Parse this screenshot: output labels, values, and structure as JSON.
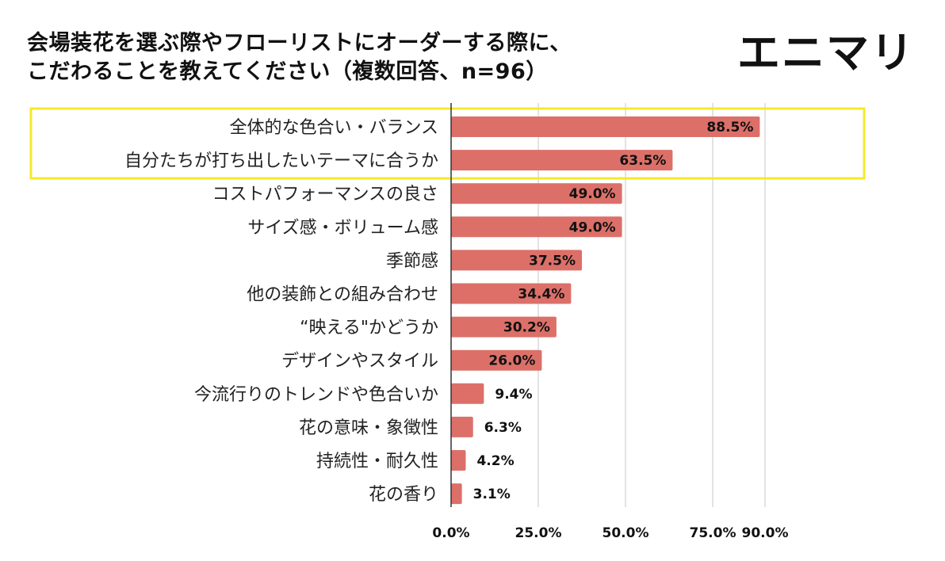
{
  "title": {
    "line1": "会場装花を選ぶ際やフローリストにオーダーする際に、",
    "line2": "こだわることを教えてください（複数回答、n=96）"
  },
  "brand": {
    "logo_text": "エニマリ"
  },
  "colors": {
    "bar": "#dc7069",
    "grid": "#d0d0d0",
    "axis": "#333333",
    "highlight": "#f4ea2a"
  },
  "chart_data": {
    "type": "bar",
    "orientation": "horizontal",
    "categories": [
      "全体的な色合い・バランス",
      "自分たちが打ち出したいテーマに合うか",
      "コストパフォーマンスの良さ",
      "サイズ感・ボリューム感",
      "季節感",
      "他の装飾との組み合わせ",
      "“映える\"かどうか",
      "デザインやスタイル",
      "今流行りのトレンドや色合いか",
      "花の意味・象徴性",
      "持続性・耐久性",
      "花の香り"
    ],
    "values": [
      88.5,
      63.5,
      49.0,
      49.0,
      37.5,
      34.4,
      30.2,
      26.0,
      9.4,
      6.3,
      4.2,
      3.1
    ],
    "value_labels": [
      "88.5%",
      "63.5%",
      "49.0%",
      "49.0%",
      "37.5%",
      "34.4%",
      "30.2%",
      "26.0%",
      "9.4%",
      "6.3%",
      "4.2%",
      "3.1%"
    ],
    "xlim": [
      0,
      100
    ],
    "x_ticks": [
      0,
      25,
      50,
      75,
      90
    ],
    "x_tick_labels": [
      "0.0%",
      "25.0%",
      "50.0%",
      "75.0%",
      "90.0%"
    ],
    "grid": true,
    "highlighted_categories": [
      0,
      1
    ]
  }
}
